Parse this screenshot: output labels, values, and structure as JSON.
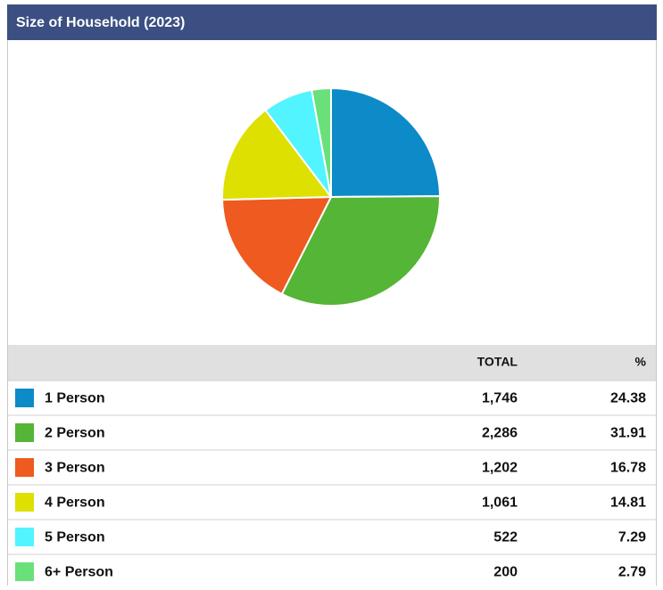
{
  "chart_data": {
    "type": "pie",
    "title": "Size of Household (2023)",
    "categories": [
      "1 Person",
      "2 Person",
      "3 Person",
      "4 Person",
      "5 Person",
      "6+ Person"
    ],
    "values": [
      24.38,
      31.91,
      16.78,
      14.81,
      7.29,
      2.79
    ],
    "colors": [
      "#0d8ac8",
      "#55b536",
      "#ee5a1f",
      "#dde000",
      "#52f4ff",
      "#6ae07b"
    ]
  },
  "table": {
    "headers": [
      "TOTAL",
      "%"
    ],
    "totals": [
      "1,746",
      "2,286",
      "1,202",
      "1,061",
      "522",
      "200"
    ]
  }
}
